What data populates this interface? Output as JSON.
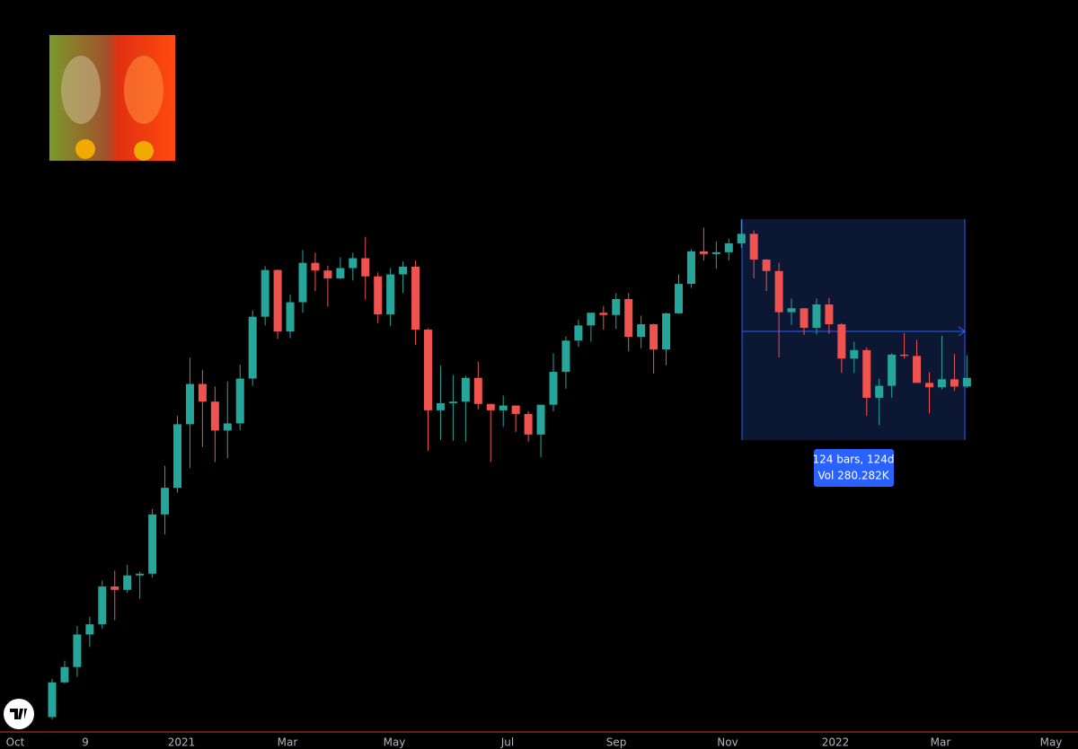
{
  "chart_data": {
    "type": "candlestick",
    "log_scale": true,
    "ylim": [
      10900,
      152000
    ],
    "up_color": "#26a69a",
    "down_color": "#ef5350",
    "x_labels": [
      "Oct",
      "9",
      "2021",
      "Mar",
      "May",
      "Jul",
      "Sep",
      "Nov",
      "2022",
      "Mar",
      "May"
    ],
    "open": [
      11500,
      13030,
      13770,
      15480,
      16060,
      18400,
      18180,
      19150,
      19270,
      23850,
      26250,
      33000,
      38150,
      35800,
      32260,
      33100,
      38900,
      48600,
      57500,
      46100,
      51200,
      59000,
      57400,
      55800,
      57900,
      60000,
      56200,
      49000,
      56600,
      58200,
      46400,
      34700,
      35600,
      35800,
      39000,
      35500,
      34700,
      35300,
      34250,
      31800,
      35400,
      39850,
      44600,
      47100,
      49300,
      48900,
      51800,
      45200,
      47300,
      43200,
      49200,
      54700,
      61500,
      60900,
      61300,
      63300,
      65500,
      59700,
      57300,
      49400,
      50100,
      46700,
      50800,
      47300,
      41800,
      43100,
      36300,
      37900,
      42400,
      42200,
      38300,
      37700,
      38800,
      37800
    ],
    "high": [
      13200,
      14090,
      15960,
      16500,
      18800,
      19480,
      19900,
      19420,
      24300,
      28400,
      34000,
      41900,
      40100,
      37800,
      38500,
      40900,
      49700,
      58300,
      57600,
      52600,
      61800,
      61200,
      58400,
      60200,
      61200,
      64800,
      57000,
      57900,
      59300,
      59500,
      46600,
      40800,
      39400,
      39300,
      41300,
      35500,
      36600,
      35300,
      34600,
      35200,
      42600,
      45300,
      48100,
      49300,
      50500,
      52900,
      52900,
      48800,
      47400,
      49300,
      56600,
      62000,
      67000,
      63700,
      64400,
      69000,
      66300,
      59800,
      59000,
      51900,
      50100,
      51900,
      52000,
      47500,
      44400,
      43500,
      38900,
      42600,
      45800,
      44700,
      39800,
      45400,
      42500,
      42300
    ],
    "low": [
      11400,
      12980,
      13290,
      14800,
      15800,
      16300,
      18000,
      17600,
      19000,
      22200,
      25800,
      28200,
      30400,
      28800,
      29200,
      32300,
      37900,
      47100,
      44900,
      45000,
      49300,
      53300,
      50400,
      55600,
      55400,
      51700,
      47500,
      47000,
      52900,
      43900,
      30000,
      31200,
      31100,
      31000,
      34800,
      28800,
      32700,
      32100,
      31000,
      29300,
      34600,
      37500,
      43600,
      44400,
      46400,
      46500,
      42900,
      43400,
      39600,
      40800,
      49100,
      53900,
      59500,
      57800,
      59500,
      62300,
      55800,
      53300,
      42000,
      47200,
      45500,
      45600,
      45700,
      39700,
      39700,
      34000,
      32900,
      36300,
      41800,
      39500,
      34300,
      37400,
      37200,
      37600
    ],
    "close": [
      13030,
      13770,
      15480,
      16060,
      18400,
      18180,
      19150,
      19270,
      23850,
      26250,
      33000,
      38150,
      35800,
      32260,
      33100,
      38900,
      48600,
      57500,
      46100,
      51200,
      59000,
      57400,
      55800,
      57900,
      60000,
      56200,
      49000,
      56600,
      58200,
      46400,
      34700,
      35600,
      35800,
      39000,
      35500,
      34700,
      35300,
      34250,
      31800,
      35400,
      39850,
      44600,
      47100,
      49300,
      48900,
      51800,
      45200,
      47300,
      43200,
      49200,
      54700,
      61500,
      60900,
      61300,
      63300,
      65500,
      59700,
      57300,
      49400,
      50100,
      46700,
      50800,
      47300,
      41800,
      43100,
      36300,
      37900,
      42400,
      42200,
      38300,
      37700,
      38800,
      37800,
      39000
    ],
    "measure_label": [
      "124 bars, 124d",
      "Vol 280.282K"
    ]
  }
}
